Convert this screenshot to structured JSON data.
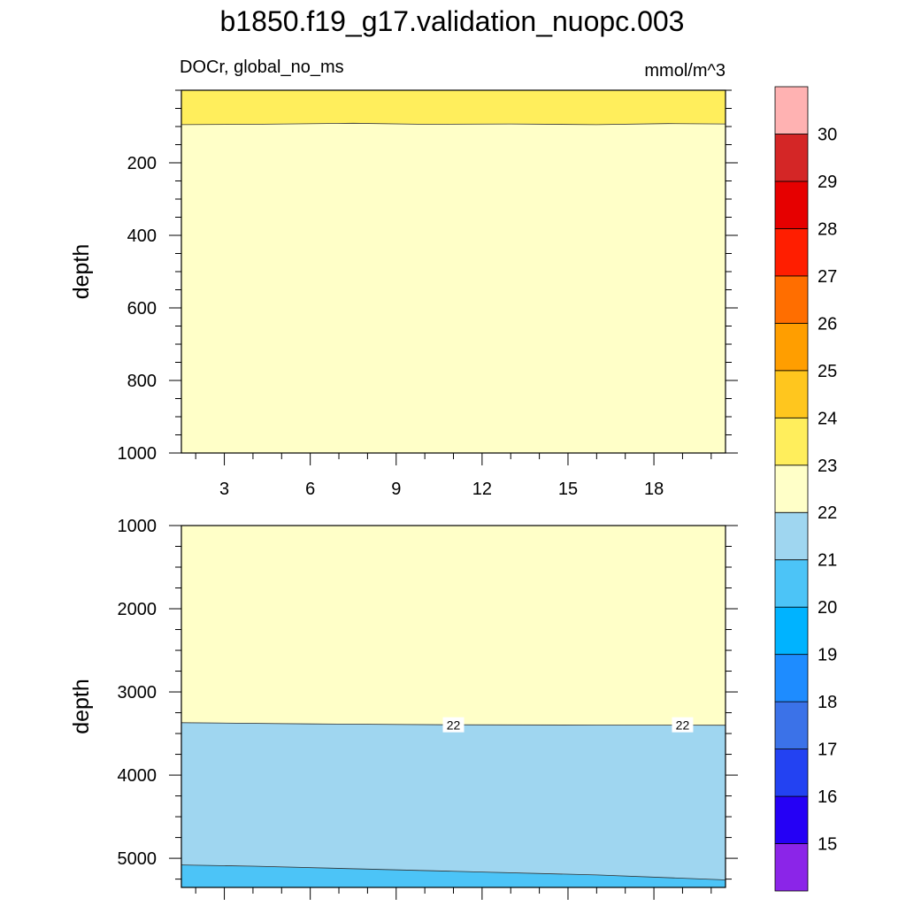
{
  "chart_data": {
    "type": "heatmap",
    "title": "b1850.f19_g17.validation_nuopc.003",
    "variable_label": "DOCr, global_no_ms",
    "units_label": "mmol/m^3",
    "x": {
      "ticks": [
        "3",
        "6",
        "9",
        "12",
        "15",
        "18"
      ],
      "tick_values": [
        3,
        6,
        9,
        12,
        15,
        18
      ],
      "range": [
        1.5,
        20.5
      ]
    },
    "panels": [
      {
        "ylabel": "depth",
        "ylim": [
          0,
          1000
        ],
        "y_reversed": true,
        "y_ticks": [
          "200",
          "400",
          "600",
          "800",
          "1000"
        ],
        "y_tick_values": [
          200,
          400,
          600,
          800,
          1000
        ],
        "contour_labels": [],
        "bands": [
          {
            "range": "23-24",
            "color": "#ffee5c",
            "top": [
              [
                1.5,
                0
              ],
              [
                20.5,
                0
              ]
            ],
            "bottom": [
              [
                1.5,
                95
              ],
              [
                4,
                94
              ],
              [
                7.5,
                91
              ],
              [
                10,
                94
              ],
              [
                13,
                93
              ],
              [
                16,
                95
              ],
              [
                18.5,
                92
              ],
              [
                20.5,
                93
              ]
            ]
          },
          {
            "range": "22-23",
            "color": "#ffffc8",
            "top": [
              [
                1.5,
                95
              ],
              [
                4,
                94
              ],
              [
                7.5,
                91
              ],
              [
                10,
                94
              ],
              [
                13,
                93
              ],
              [
                16,
                95
              ],
              [
                18.5,
                92
              ],
              [
                20.5,
                93
              ]
            ],
            "bottom": [
              [
                1.5,
                1000
              ],
              [
                20.5,
                1000
              ]
            ]
          }
        ]
      },
      {
        "ylabel": "depth",
        "ylim": [
          1000,
          5350
        ],
        "y_reversed": true,
        "y_ticks": [
          "1000",
          "2000",
          "3000",
          "4000",
          "5000"
        ],
        "y_tick_values": [
          1000,
          2000,
          3000,
          4000,
          5000
        ],
        "contour_labels": [
          {
            "text": "22",
            "x": 11.0,
            "y": 3400
          },
          {
            "text": "22",
            "x": 19.0,
            "y": 3400
          }
        ],
        "bands": [
          {
            "range": "22-23",
            "color": "#ffffc8",
            "top": [
              [
                1.5,
                1000
              ],
              [
                20.5,
                1000
              ]
            ],
            "bottom": [
              [
                1.5,
                3370
              ],
              [
                6,
                3385
              ],
              [
                11,
                3395
              ],
              [
                16,
                3398
              ],
              [
                20.5,
                3400
              ]
            ]
          },
          {
            "range": "21-22",
            "color": "#9fd6f0",
            "top": [
              [
                1.5,
                3370
              ],
              [
                6,
                3385
              ],
              [
                11,
                3395
              ],
              [
                16,
                3398
              ],
              [
                20.5,
                3400
              ]
            ],
            "bottom": [
              [
                1.5,
                5080
              ],
              [
                4,
                5095
              ],
              [
                8,
                5130
              ],
              [
                12,
                5165
              ],
              [
                16,
                5200
              ],
              [
                20.5,
                5260
              ]
            ]
          },
          {
            "range": "20-21",
            "color": "#4cc4f7",
            "top": [
              [
                1.5,
                5080
              ],
              [
                4,
                5095
              ],
              [
                8,
                5130
              ],
              [
                12,
                5165
              ],
              [
                16,
                5200
              ],
              [
                20.5,
                5260
              ]
            ],
            "bottom": [
              [
                1.5,
                5350
              ],
              [
                20.5,
                5350
              ]
            ]
          }
        ]
      }
    ],
    "colorbar": {
      "labels": [
        "15",
        "16",
        "17",
        "18",
        "19",
        "20",
        "21",
        "22",
        "23",
        "24",
        "25",
        "26",
        "27",
        "28",
        "29",
        "30"
      ],
      "colors": [
        "#8b25e8",
        "#2500f5",
        "#2342f2",
        "#3b72e8",
        "#1e8cff",
        "#00b3ff",
        "#4cc4f7",
        "#9fd6f0",
        "#ffffc8",
        "#ffee5c",
        "#ffc61e",
        "#ff9e00",
        "#ff6e00",
        "#ff1e00",
        "#e60000",
        "#d42626",
        "#ffb2b2"
      ]
    }
  }
}
